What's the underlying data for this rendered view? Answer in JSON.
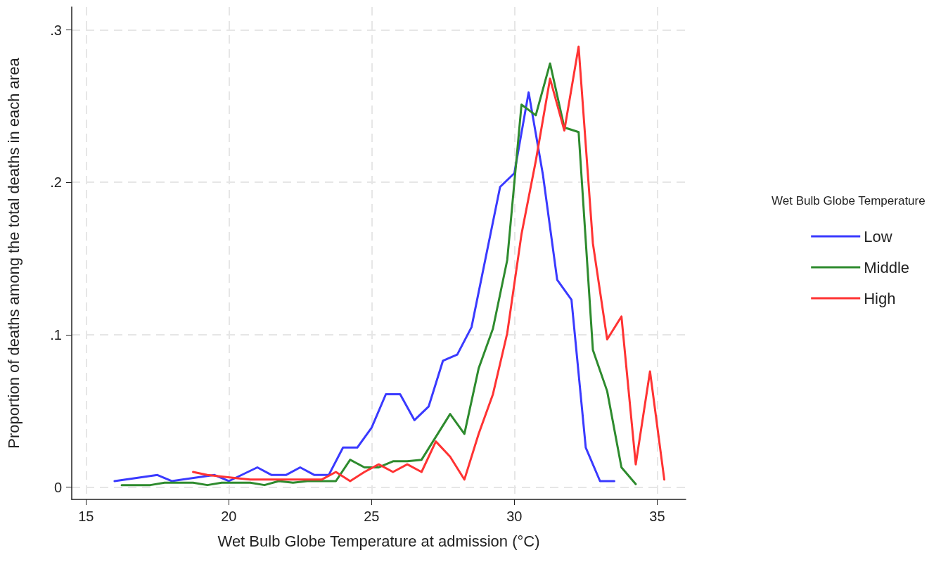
{
  "chart_data": {
    "type": "line",
    "xlabel": "Wet Bulb Globe Temperature at admission (°C)",
    "ylabel": "Proportion of deaths among the total deaths in each area",
    "legend_title": "Wet Bulb Globe Temperature",
    "xlim": [
      14.5,
      36
    ],
    "xticks": [
      15,
      20,
      25,
      30,
      35
    ],
    "ylim": [
      -0.008,
      0.315
    ],
    "yticks": [
      0,
      {
        "value": 0.1,
        "label": ".1"
      },
      {
        "value": 0.2,
        "label": ".2"
      },
      {
        "value": 0.3,
        "label": ".3"
      }
    ],
    "grid": true,
    "legend": "right",
    "line_style": "solid",
    "marker": "none",
    "series": [
      {
        "name": "Low",
        "color": "#3a3aff",
        "x": [
          16,
          17.5,
          18,
          19.5,
          20,
          21,
          21.5,
          22,
          22.5,
          23,
          23.5,
          24,
          24.5,
          25,
          25.5,
          26,
          26.5,
          27,
          27.5,
          28,
          28.5,
          29.5,
          30,
          30.5,
          31,
          31.5,
          32,
          32.5,
          33,
          33.5
        ],
        "values": [
          0.004,
          0.008,
          0.004,
          0.008,
          0.004,
          0.013,
          0.008,
          0.008,
          0.013,
          0.008,
          0.008,
          0.026,
          0.026,
          0.039,
          0.061,
          0.061,
          0.044,
          0.053,
          0.083,
          0.087,
          0.105,
          0.197,
          0.206,
          0.259,
          0.205,
          0.136,
          0.123,
          0.026,
          0.004,
          0.004
        ]
      },
      {
        "name": "Middle",
        "color": "#2e8b2e",
        "x": [
          16.25,
          17.25,
          17.75,
          18.75,
          19.25,
          19.75,
          20.75,
          21.25,
          21.75,
          22.25,
          22.75,
          23.75,
          24.25,
          24.75,
          25.25,
          25.75,
          26.25,
          26.75,
          27.25,
          27.75,
          28.25,
          28.75,
          29.25,
          29.75,
          30.25,
          30.75,
          31.25,
          31.75,
          32.25,
          32.75,
          33.25,
          33.75,
          34.25
        ],
        "values": [
          0.0014,
          0.0014,
          0.003,
          0.003,
          0.0014,
          0.003,
          0.003,
          0.0014,
          0.004,
          0.003,
          0.004,
          0.004,
          0.018,
          0.013,
          0.013,
          0.017,
          0.017,
          0.018,
          0.033,
          0.048,
          0.035,
          0.078,
          0.104,
          0.149,
          0.251,
          0.244,
          0.278,
          0.236,
          0.233,
          0.09,
          0.063,
          0.013,
          0.002
        ]
      },
      {
        "name": "High",
        "color": "#ff3333",
        "x": [
          18.75,
          19.25,
          19.75,
          20.25,
          20.75,
          21.25,
          21.75,
          22.25,
          22.75,
          23.25,
          23.75,
          24.25,
          24.75,
          25.25,
          25.75,
          26.25,
          26.75,
          27.25,
          27.75,
          28.25,
          28.75,
          29.25,
          29.75,
          30.25,
          30.75,
          31.25,
          31.75,
          32.25,
          32.75,
          33.25,
          33.75,
          34.25,
          34.75,
          35.25
        ],
        "values": [
          0.01,
          0.008,
          0.007,
          0.006,
          0.005,
          0.005,
          0.005,
          0.005,
          0.005,
          0.005,
          0.01,
          0.004,
          0.01,
          0.015,
          0.01,
          0.015,
          0.01,
          0.03,
          0.02,
          0.005,
          0.035,
          0.061,
          0.101,
          0.166,
          0.214,
          0.268,
          0.234,
          0.289,
          0.16,
          0.097,
          0.112,
          0.015,
          0.076,
          0.005
        ]
      }
    ]
  }
}
